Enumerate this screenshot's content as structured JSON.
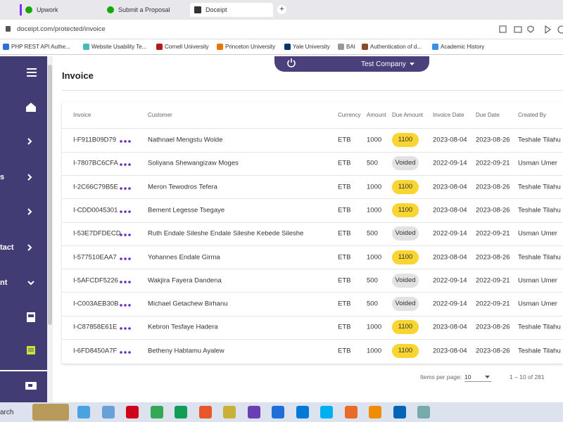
{
  "browser": {
    "tabs": [
      "Upwork",
      "Submit a Proposal",
      "Doceipt"
    ],
    "url": "doceipt.com/protected/invoice",
    "bookmarks": [
      "PHP REST API Authe...",
      "Website Usability Te...",
      "Cornell University",
      "Princeton University",
      "Yale University",
      "BAI",
      "Authentication of d...",
      "Academic History"
    ]
  },
  "sidebar": {
    "labels": [
      "s",
      "tact",
      "nt"
    ]
  },
  "header": {
    "company": "Test Company"
  },
  "page": {
    "title": "Invoice"
  },
  "table": {
    "columns": [
      "Invoice",
      "Customer",
      "Currency",
      "Amount",
      "Due Amount",
      "Invoice Date",
      "Due Date",
      "Created By"
    ],
    "rows": [
      [
        "I-F911B09D79",
        "Nathnael Mengstu Wolde",
        "ETB",
        1000,
        1100,
        "2023-08-04",
        "2023-08-26",
        "Teshale Tilahu"
      ],
      [
        "I-7807BC6CFA",
        "Soliyana Shewangizaw Moges",
        "ETB",
        500,
        "Voided",
        "2022-09-14",
        "2022-09-21",
        "Usman Umer"
      ],
      [
        "I-2C66C79B5E",
        "Meron Tewodros Tefera",
        "ETB",
        1000,
        1100,
        "2023-08-04",
        "2023-08-26",
        "Teshale Tilahu"
      ],
      [
        "I-CDD0045301",
        "Bement Legesse Tsegaye",
        "ETB",
        1000,
        1100,
        "2023-08-04",
        "2023-08-26",
        "Teshale Tilahu"
      ],
      [
        "I-53E7DFDECD",
        "Ruth Endale Sileshe Endale Sileshe Kebede Sileshe",
        "ETB",
        500,
        "Voided",
        "2022-09-14",
        "2022-09-21",
        "Usman Umer"
      ],
      [
        "I-577510EAA7",
        "Yohannes Endale Girma",
        "ETB",
        1000,
        1100,
        "2023-08-04",
        "2023-08-26",
        "Teshale Tilahu"
      ],
      [
        "I-5AFCDF5226",
        "Wakjira Fayera Dandena",
        "ETB",
        500,
        "Voided",
        "2022-09-14",
        "2022-09-21",
        "Usman Umer"
      ],
      [
        "I-C003AEB30B",
        "Michael Getachew Birhanu",
        "ETB",
        500,
        "Voided",
        "2022-09-14",
        "2022-09-21",
        "Usman Umer"
      ],
      [
        "I-C87858E61E",
        "Kebron Tesfaye Hadera",
        "ETB",
        1000,
        1100,
        "2023-08-04",
        "2023-08-26",
        "Teshale Tilahu"
      ],
      [
        "I-6FD8450A7F",
        "Betheny Habtamu Ayalew",
        "ETB",
        1000,
        1100,
        "2023-08-04",
        "2023-08-26",
        "Teshale Tilahu"
      ]
    ]
  },
  "pagination": {
    "items_per_page_label": "Items per page:",
    "page_size": "10",
    "range": "1 – 10 of 281"
  },
  "taskbar": {
    "search": "arch"
  }
}
